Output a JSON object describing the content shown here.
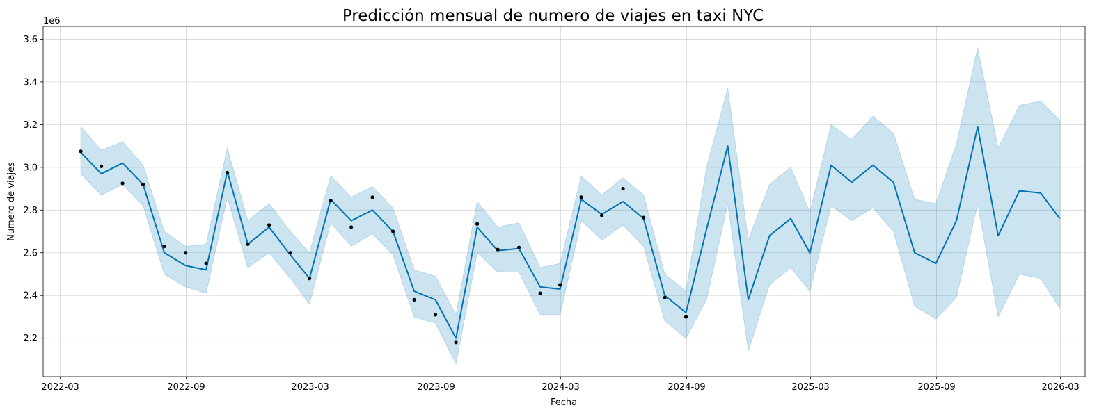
{
  "chart_data": {
    "type": "line",
    "title": "Predicción mensual de numero de viajes en taxi NYC",
    "xlabel": "Fecha",
    "ylabel": "Numero de viajes",
    "y_multiplier_label": "1e6",
    "ylim": [
      2.02,
      3.66
    ],
    "xlim": [
      "2022-02-04",
      "2026-04-06"
    ],
    "grid": true,
    "x_tick_labels": [
      "2022-03",
      "2022-09",
      "2023-03",
      "2023-09",
      "2024-03",
      "2024-09",
      "2025-03",
      "2025-09",
      "2026-03"
    ],
    "y_tick_labels": [
      "2.2",
      "2.4",
      "2.6",
      "2.8",
      "3.0",
      "3.2",
      "3.4",
      "3.6"
    ],
    "colors": {
      "line": "#0072b2",
      "band": "#0072b2",
      "points": "#000000"
    },
    "series": [
      {
        "kind": "forecast",
        "x": [
          "2022-03-31",
          "2022-04-30",
          "2022-05-31",
          "2022-06-30",
          "2022-07-31",
          "2022-08-31",
          "2022-09-30",
          "2022-10-31",
          "2022-11-30",
          "2022-12-31",
          "2023-01-31",
          "2023-02-28",
          "2023-03-31",
          "2023-04-30",
          "2023-05-31",
          "2023-06-30",
          "2023-07-31",
          "2023-08-31",
          "2023-09-30",
          "2023-10-31",
          "2023-11-30",
          "2023-12-31",
          "2024-01-31",
          "2024-02-29",
          "2024-03-31",
          "2024-04-30",
          "2024-05-31",
          "2024-06-30",
          "2024-07-31",
          "2024-08-31",
          "2024-09-30",
          "2024-10-31",
          "2024-11-30",
          "2024-12-31",
          "2025-01-31",
          "2025-02-28",
          "2025-03-31",
          "2025-04-30",
          "2025-05-31",
          "2025-06-30",
          "2025-07-31",
          "2025-08-31",
          "2025-09-30",
          "2025-10-31",
          "2025-11-30",
          "2025-12-31",
          "2026-01-31",
          "2026-02-28"
        ],
        "yhat": [
          3.07,
          2.97,
          3.02,
          2.92,
          2.6,
          2.54,
          2.52,
          2.98,
          2.64,
          2.72,
          2.59,
          2.48,
          2.85,
          2.75,
          2.8,
          2.7,
          2.42,
          2.38,
          2.2,
          2.72,
          2.61,
          2.62,
          2.44,
          2.43,
          2.85,
          2.78,
          2.84,
          2.76,
          2.4,
          2.32,
          2.71,
          3.1,
          2.38,
          2.68,
          2.76,
          2.6,
          3.01,
          2.93,
          3.01,
          2.93,
          2.6,
          2.55,
          2.75,
          3.19,
          2.68,
          2.89,
          2.88,
          2.76
        ],
        "yhat_lower": [
          2.97,
          2.87,
          2.92,
          2.82,
          2.5,
          2.44,
          2.41,
          2.86,
          2.53,
          2.6,
          2.48,
          2.36,
          2.74,
          2.63,
          2.69,
          2.59,
          2.3,
          2.27,
          2.08,
          2.6,
          2.51,
          2.51,
          2.31,
          2.31,
          2.75,
          2.66,
          2.73,
          2.63,
          2.28,
          2.2,
          2.38,
          2.83,
          2.14,
          2.45,
          2.53,
          2.42,
          2.82,
          2.75,
          2.81,
          2.7,
          2.35,
          2.29,
          2.39,
          2.83,
          2.3,
          2.5,
          2.48,
          2.34
        ],
        "yhat_upper": [
          3.19,
          3.08,
          3.12,
          3.01,
          2.7,
          2.63,
          2.64,
          3.09,
          2.75,
          2.83,
          2.7,
          2.6,
          2.96,
          2.86,
          2.91,
          2.81,
          2.52,
          2.49,
          2.31,
          2.84,
          2.72,
          2.74,
          2.53,
          2.55,
          2.96,
          2.87,
          2.95,
          2.87,
          2.5,
          2.42,
          3.0,
          3.37,
          2.66,
          2.92,
          3.0,
          2.79,
          3.2,
          3.13,
          3.24,
          3.16,
          2.85,
          2.83,
          3.11,
          3.56,
          3.09,
          3.29,
          3.31,
          3.22
        ]
      },
      {
        "kind": "actual",
        "x": [
          "2022-03-31",
          "2022-04-30",
          "2022-05-31",
          "2022-06-30",
          "2022-07-31",
          "2022-08-31",
          "2022-09-30",
          "2022-10-31",
          "2022-11-30",
          "2022-12-31",
          "2023-01-31",
          "2023-02-28",
          "2023-03-31",
          "2023-04-30",
          "2023-05-31",
          "2023-06-30",
          "2023-07-31",
          "2023-08-31",
          "2023-09-30",
          "2023-10-31",
          "2023-11-30",
          "2023-12-31",
          "2024-01-31",
          "2024-02-29",
          "2024-03-31",
          "2024-04-30",
          "2024-05-31",
          "2024-06-30",
          "2024-07-31",
          "2024-08-31"
        ],
        "y": [
          3.075,
          3.005,
          2.925,
          2.92,
          2.63,
          2.6,
          2.55,
          2.975,
          2.64,
          2.73,
          2.6,
          2.48,
          2.845,
          2.72,
          2.86,
          2.7,
          2.38,
          2.31,
          2.18,
          2.735,
          2.615,
          2.625,
          2.41,
          2.45,
          2.86,
          2.775,
          2.9,
          2.765,
          2.39,
          2.3
        ]
      }
    ]
  }
}
